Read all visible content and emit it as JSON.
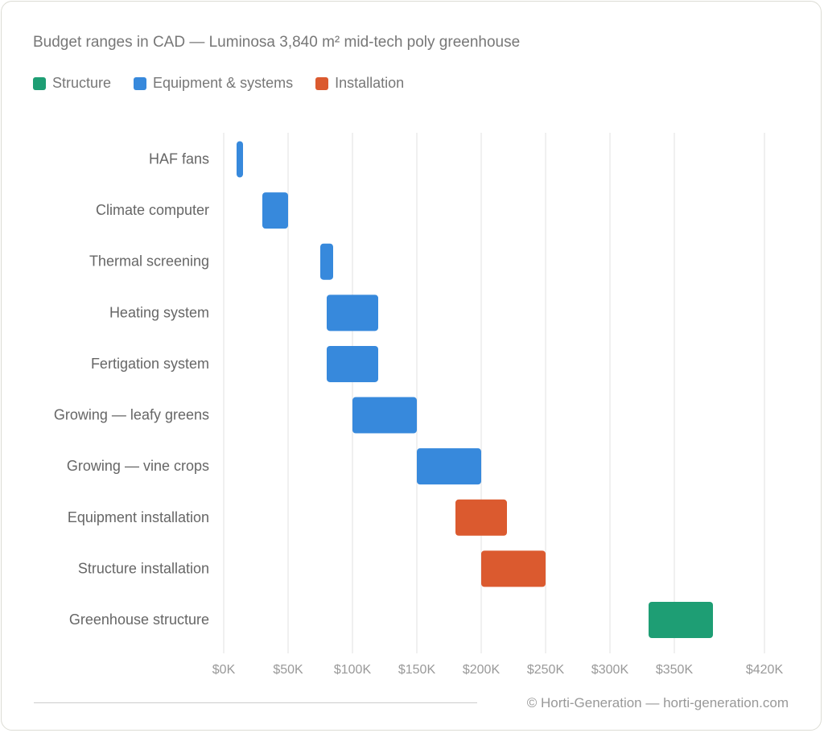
{
  "chart_data": {
    "type": "bar",
    "orientation": "horizontal-range",
    "title": "Budget ranges in CAD — Luminosa 3,840 m² mid-tech poly greenhouse",
    "legend": {
      "placement": "top-left",
      "entries": [
        {
          "name": "Structure",
          "color": "#1e9e74"
        },
        {
          "name": "Equipment & systems",
          "color": "#3789dc"
        },
        {
          "name": "Installation",
          "color": "#db5a2f"
        }
      ]
    },
    "xlim": [
      0,
      420
    ],
    "x_ticks": [
      0,
      50,
      100,
      150,
      200,
      250,
      300,
      350,
      420
    ],
    "x_tick_labels": [
      "$0K",
      "$50K",
      "$100K",
      "$150K",
      "$200K",
      "$250K",
      "$300K",
      "$350K",
      "$420K"
    ],
    "grid": true,
    "units": "thousand CAD",
    "categories": [
      "HAF fans",
      "Climate computer",
      "Thermal screening",
      "Heating system",
      "Fertigation system",
      "Growing — leafy greens",
      "Growing — vine crops",
      "Equipment installation",
      "Structure installation",
      "Greenhouse structure"
    ],
    "ranges": [
      {
        "low": 10,
        "high": 15,
        "group": "Equipment & systems"
      },
      {
        "low": 30,
        "high": 50,
        "group": "Equipment & systems"
      },
      {
        "low": 75,
        "high": 85,
        "group": "Equipment & systems"
      },
      {
        "low": 80,
        "high": 120,
        "group": "Equipment & systems"
      },
      {
        "low": 80,
        "high": 120,
        "group": "Equipment & systems"
      },
      {
        "low": 100,
        "high": 150,
        "group": "Equipment & systems"
      },
      {
        "low": 150,
        "high": 200,
        "group": "Equipment & systems"
      },
      {
        "low": 180,
        "high": 220,
        "group": "Installation"
      },
      {
        "low": 200,
        "high": 250,
        "group": "Installation"
      },
      {
        "low": 330,
        "high": 380,
        "group": "Structure"
      }
    ]
  },
  "footer": "© Horti-Generation — horti-generation.com"
}
